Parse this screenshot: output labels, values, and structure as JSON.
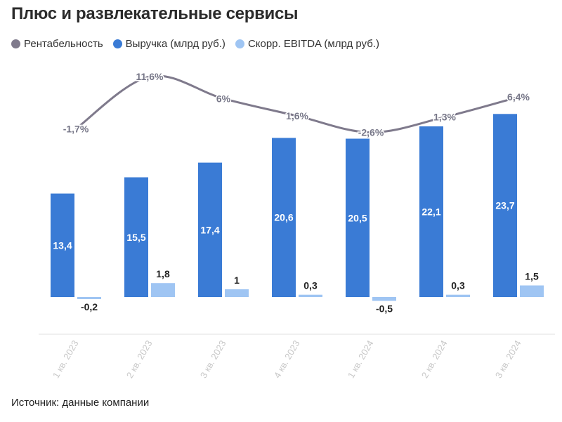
{
  "title": "Плюс и развлекательные сервисы",
  "source": "Источник: данные компании",
  "chart_data": {
    "type": "bar",
    "categories": [
      "1 кв. 2023",
      "2 кв. 2023",
      "3 кв. 2023",
      "4 кв. 2023",
      "1 кв. 2024",
      "2 кв. 2024",
      "3 кв. 2024"
    ],
    "series": [
      {
        "name": "Рентабельность",
        "kind": "line",
        "values": [
          -1.7,
          11.6,
          6,
          1.6,
          -2.6,
          1.3,
          6.4
        ],
        "labels": [
          "-1,7%",
          "11,6%",
          "6%",
          "1,6%",
          "-2,6%",
          "1,3%",
          "6,4%"
        ],
        "color": "#7f7a8c"
      },
      {
        "name": "Выручка (млрд руб.)",
        "kind": "bar",
        "values": [
          13.4,
          15.5,
          17.4,
          20.6,
          20.5,
          22.1,
          23.7
        ],
        "labels": [
          "13,4",
          "15,5",
          "17,4",
          "20,6",
          "20,5",
          "22,1",
          "23,7"
        ],
        "color": "#3a7bd5"
      },
      {
        "name": "Скорр. EBITDA (млрд руб.)",
        "kind": "bar",
        "values": [
          -0.2,
          1.8,
          1,
          0.3,
          -0.5,
          0.3,
          1.5
        ],
        "labels": [
          "-0,2",
          "1,8",
          "1",
          "0,3",
          "-0,5",
          "0,3",
          "1,5"
        ],
        "color": "#9fc5f3"
      }
    ],
    "legend_position": "top-left",
    "grid": false
  }
}
